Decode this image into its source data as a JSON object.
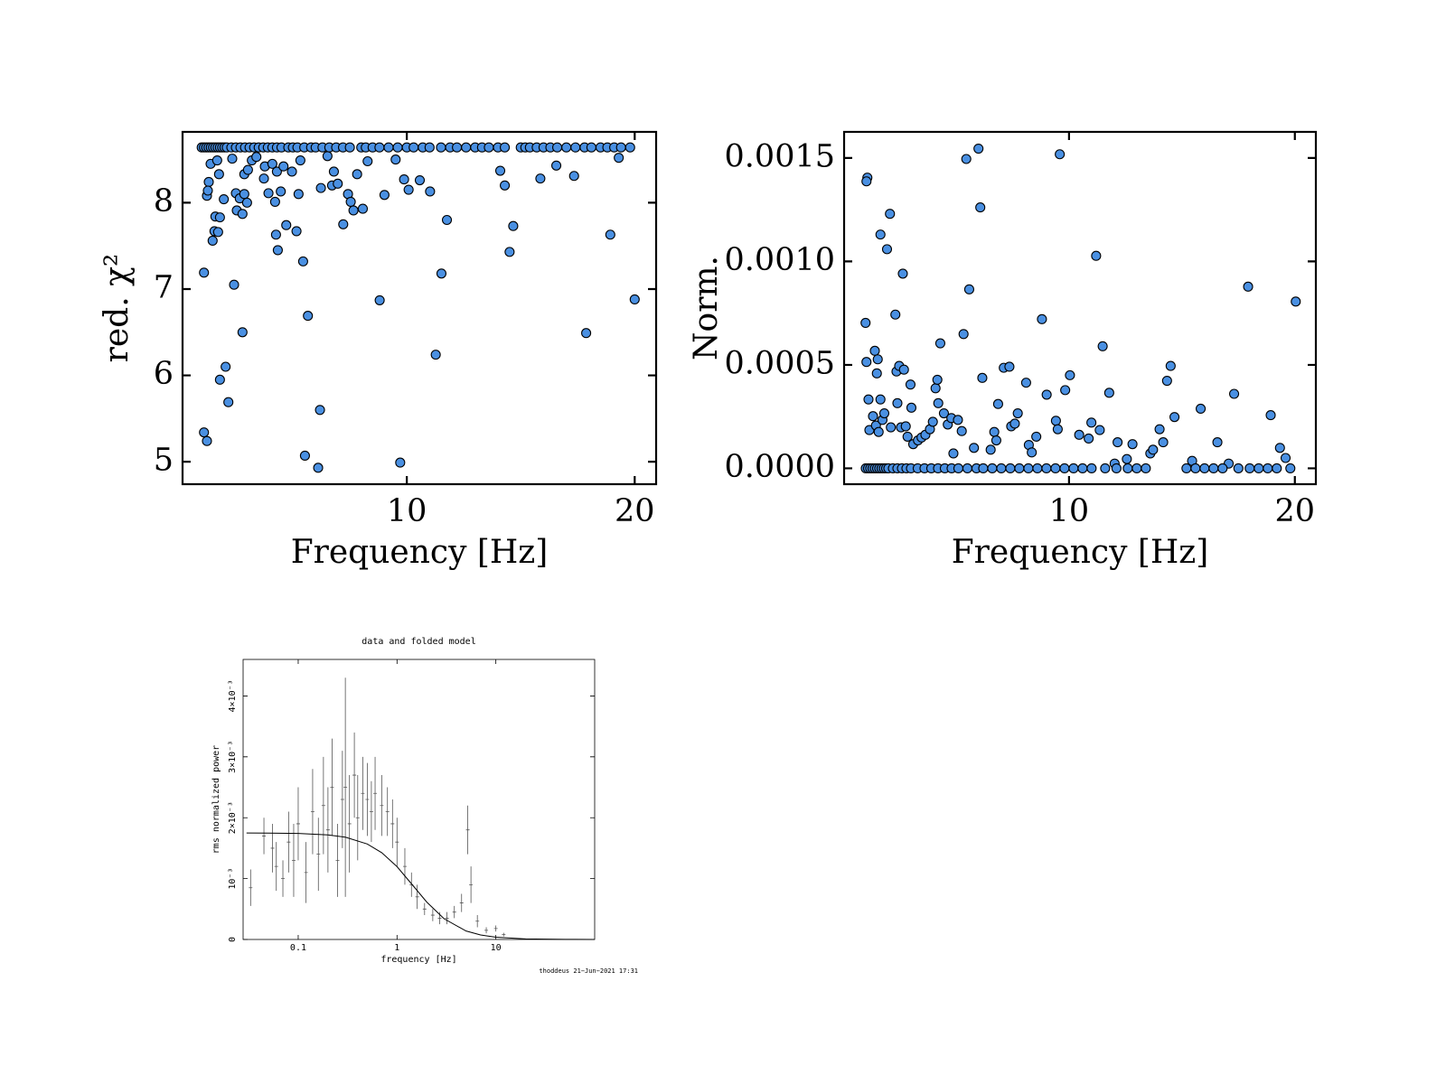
{
  "chart_data": [
    {
      "type": "scatter",
      "xlabel": "Frequency [Hz]",
      "ylabel": "red. χ²",
      "x": [
        1.1,
        1.23,
        1.1,
        2.17,
        2.05,
        1.8,
        2.79,
        2.42,
        1.48,
        1.56,
        1.72,
        1.6,
        1.8,
        1.23,
        1.31,
        1.27,
        1.39,
        1.68,
        1.76,
        1.97,
        2.34,
        2.5,
        2.54,
        2.67,
        2.79,
        2.87,
        2.99,
        2.87,
        3.03,
        3.2,
        3.4,
        3.73,
        3.77,
        3.93,
        4.1,
        4.22,
        4.3,
        4.26,
        4.34,
        4.47,
        4.59,
        4.71,
        4.96,
        5.16,
        5.25,
        5.33,
        5.45,
        5.53,
        5.66,
        6.19,
        6.11,
        6.23,
        6.52,
        6.72,
        6.8,
        6.97,
        7.21,
        7.42,
        7.54,
        7.66,
        7.82,
        8.07,
        8.28,
        8.81,
        9.02,
        9.51,
        9.71,
        9.88,
        10.08,
        10.57,
        11.02,
        11.27,
        11.52,
        11.76,
        14.1,
        14.3,
        14.51,
        14.67,
        15.86,
        16.56,
        17.34,
        17.87,
        18.93,
        19.3,
        20.0,
        1.0,
        1.1,
        1.2,
        1.3,
        1.4,
        1.5,
        1.6,
        1.7,
        1.8,
        1.9,
        2.0,
        2.1,
        2.3,
        2.5,
        2.7,
        2.9,
        3.1,
        3.3,
        3.5,
        3.7,
        3.9,
        4.1,
        4.3,
        4.5,
        4.8,
        5.0,
        5.2,
        5.5,
        5.8,
        6.0,
        6.3,
        6.6,
        6.9,
        7.2,
        7.5,
        8.0,
        8.2,
        8.5,
        8.8,
        9.2,
        9.6,
        10.0,
        10.3,
        10.7,
        11.0,
        11.5,
        11.9,
        12.2,
        12.6,
        13.0,
        13.3,
        13.6,
        14.0,
        14.3,
        15.0,
        15.2,
        15.4,
        15.7,
        16.0,
        16.3,
        16.6,
        17.0,
        17.4,
        17.8,
        18.1,
        18.5,
        18.8,
        19.1,
        19.4,
        19.8
      ],
      "values": [
        5.34,
        5.24,
        7.19,
        5.69,
        6.1,
        5.95,
        6.5,
        7.05,
        7.56,
        7.67,
        7.66,
        7.84,
        7.83,
        8.08,
        8.24,
        8.14,
        8.45,
        8.49,
        8.33,
        8.04,
        8.51,
        8.11,
        7.91,
        8.05,
        7.87,
        8.1,
        8.0,
        8.33,
        8.38,
        8.49,
        8.53,
        8.28,
        8.42,
        8.11,
        8.45,
        8.01,
        8.36,
        7.63,
        7.45,
        8.13,
        8.42,
        7.74,
        8.36,
        7.67,
        8.1,
        8.49,
        7.32,
        5.07,
        6.69,
        5.6,
        4.93,
        8.17,
        8.54,
        8.2,
        8.36,
        8.22,
        7.75,
        8.1,
        8.01,
        7.91,
        8.33,
        7.93,
        8.48,
        6.87,
        8.09,
        8.5,
        4.99,
        8.27,
        8.15,
        8.26,
        8.13,
        6.24,
        7.18,
        7.8,
        8.37,
        8.2,
        7.43,
        7.73,
        8.28,
        8.43,
        8.31,
        6.49,
        7.63,
        8.52,
        6.88,
        8.64,
        8.64,
        8.64,
        8.64,
        8.64,
        8.64,
        8.64,
        8.64,
        8.64,
        8.64,
        8.64,
        8.64,
        8.64,
        8.64,
        8.64,
        8.64,
        8.64,
        8.64,
        8.64,
        8.64,
        8.64,
        8.64,
        8.64,
        8.64,
        8.64,
        8.64,
        8.64,
        8.64,
        8.64,
        8.64,
        8.64,
        8.64,
        8.64,
        8.64,
        8.64,
        8.64,
        8.64,
        8.64,
        8.64,
        8.64,
        8.64,
        8.64,
        8.64,
        8.64,
        8.64,
        8.64,
        8.64,
        8.64,
        8.64,
        8.64,
        8.64,
        8.64,
        8.64,
        8.64,
        8.64,
        8.64,
        8.64,
        8.64,
        8.64,
        8.64,
        8.64,
        8.64,
        8.64,
        8.64,
        8.64,
        8.64,
        8.64,
        8.64,
        8.64,
        8.64
      ],
      "color": "#4a90e2",
      "edgecolor": "#000000",
      "xlim": [
        0.16,
        20.94
      ],
      "xticks": [
        10,
        20
      ],
      "ylim": [
        4.74,
        8.82
      ],
      "yticks": [
        5,
        6,
        7,
        8
      ]
    },
    {
      "type": "scatter",
      "xlabel": "Frequency [Hz]",
      "ylabel": "Norm.",
      "x": [
        1.07,
        1.03,
        0.99,
        1.03,
        1.12,
        1.16,
        1.32,
        1.4,
        1.49,
        1.53,
        1.45,
        1.57,
        1.65,
        1.65,
        1.74,
        1.82,
        1.94,
        2.07,
        2.11,
        2.31,
        2.36,
        2.4,
        2.48,
        2.56,
        2.64,
        2.69,
        2.77,
        2.85,
        2.98,
        3.02,
        3.1,
        3.31,
        3.47,
        3.64,
        3.84,
        3.97,
        4.09,
        4.17,
        4.3,
        4.21,
        4.46,
        4.63,
        4.79,
        4.88,
        5.08,
        5.25,
        5.33,
        5.45,
        5.58,
        5.79,
        5.99,
        6.07,
        6.16,
        6.53,
        6.69,
        6.78,
        6.86,
        7.11,
        7.36,
        7.44,
        7.6,
        7.73,
        8.1,
        8.22,
        8.35,
        8.55,
        8.8,
        9.01,
        9.42,
        9.5,
        9.59,
        9.83,
        10.04,
        10.45,
        10.87,
        10.99,
        11.2,
        11.36,
        11.49,
        11.78,
        12.02,
        12.15,
        12.56,
        12.81,
        13.6,
        13.72,
        14.01,
        14.17,
        14.34,
        14.5,
        14.67,
        15.45,
        15.83,
        16.57,
        17.07,
        17.31,
        17.93,
        18.93,
        19.34,
        19.59,
        20.04,
        1.0,
        1.1,
        1.2,
        1.3,
        1.4,
        1.5,
        1.6,
        1.7,
        1.8,
        1.9,
        2.0,
        2.2,
        2.4,
        2.6,
        2.8,
        3.0,
        3.3,
        3.6,
        3.9,
        4.2,
        4.5,
        4.8,
        5.1,
        5.5,
        5.9,
        6.2,
        6.6,
        7.0,
        7.4,
        7.8,
        8.2,
        8.6,
        9.0,
        9.4,
        9.8,
        10.2,
        10.6,
        11.0,
        11.6,
        12.1,
        12.6,
        13.0,
        13.4,
        15.2,
        15.6,
        16.0,
        16.4,
        16.8,
        17.5,
        18.0,
        18.4,
        18.8,
        19.2,
        19.8
      ],
      "values": [
        0.001405,
        0.001387,
        0.000703,
        0.000514,
        0.000333,
        0.000185,
        0.000252,
        0.000568,
        0.000459,
        0.000527,
        0.000207,
        0.000176,
        0.000333,
        0.00113,
        0.000234,
        0.000266,
        0.001059,
        0.00123,
        0.000198,
        0.000743,
        0.000468,
        0.000315,
        0.000495,
        0.000198,
        0.000941,
        0.000477,
        0.000203,
        0.000153,
        0.000405,
        0.000293,
        0.000117,
        0.000135,
        0.000149,
        0.000162,
        0.000189,
        0.000225,
        0.000387,
        0.000428,
        0.000604,
        0.000315,
        0.000266,
        0.000212,
        0.000243,
        7.2e-05,
        0.000234,
        0.00018,
        0.000649,
        0.001495,
        0.000865,
        9.9e-05,
        0.001545,
        0.001261,
        0.000437,
        9e-05,
        0.000176,
        0.000135,
        0.000311,
        0.000486,
        0.000491,
        0.000203,
        0.000216,
        0.000266,
        0.000414,
        0.000113,
        7.7e-05,
        0.000153,
        0.000721,
        0.000356,
        0.00023,
        0.000189,
        0.001518,
        0.000378,
        0.00045,
        0.000162,
        0.000144,
        0.000221,
        0.001027,
        0.000185,
        0.00059,
        0.000365,
        2.3e-05,
        0.000126,
        4.5e-05,
        0.000117,
        7.2e-05,
        9e-05,
        0.000189,
        0.000126,
        0.000423,
        0.000495,
        0.000248,
        3.6e-05,
        0.000288,
        0.000126,
        2.3e-05,
        0.00036,
        0.000878,
        0.000257,
        9.9e-05,
        5e-05,
        0.000806,
        0,
        0,
        0,
        0,
        0,
        0,
        0,
        0,
        0,
        0,
        0,
        0,
        0,
        0,
        0,
        0,
        0,
        0,
        0,
        0,
        0,
        0,
        0,
        0,
        0,
        0,
        0,
        0,
        0,
        0,
        0,
        0,
        0,
        0,
        0,
        0,
        0,
        0,
        0,
        0,
        0,
        0,
        0,
        0,
        0,
        0,
        0,
        0,
        0,
        0,
        0,
        0,
        0,
        0
      ],
      "color": "#4a90e2",
      "edgecolor": "#000000",
      "xlim": [
        0.04,
        20.93
      ],
      "xticks": [
        10,
        20
      ],
      "ylim": [
        -7.66e-05,
        0.001626
      ],
      "yticks": [
        {
          "value": 0,
          "label": "0.0000"
        },
        {
          "value": 0.0005,
          "label": "0.0005"
        },
        {
          "value": 0.001,
          "label": "0.0010"
        },
        {
          "value": 0.0015,
          "label": "0.0015"
        }
      ]
    },
    {
      "type": "errorbar",
      "title": "data and folded model",
      "xlabel": "frequency [Hz]",
      "ylabel": "rms normalized power",
      "footer": "thoddeus 21−Jun−2021 17:31",
      "xscale": "log",
      "x": [
        0.033,
        0.045,
        0.055,
        0.06,
        0.07,
        0.08,
        0.09,
        0.1,
        0.12,
        0.14,
        0.16,
        0.18,
        0.2,
        0.22,
        0.25,
        0.28,
        0.3,
        0.33,
        0.37,
        0.4,
        0.45,
        0.5,
        0.55,
        0.6,
        0.7,
        0.8,
        0.9,
        1.0,
        1.2,
        1.4,
        1.6,
        1.9,
        2.3,
        2.7,
        3.2,
        3.8,
        4.5,
        5.2,
        5.6,
        6.5,
        8,
        10,
        12
      ],
      "values": [
        0.00085,
        0.0017,
        0.0015,
        0.0012,
        0.001,
        0.0016,
        0.0013,
        0.0019,
        0.0011,
        0.0021,
        0.0014,
        0.0022,
        0.0018,
        0.0025,
        0.0013,
        0.0023,
        0.0025,
        0.0019,
        0.0027,
        0.002,
        0.0024,
        0.0023,
        0.0021,
        0.0024,
        0.0022,
        0.0021,
        0.0019,
        0.0016,
        0.0012,
        0.0009,
        0.0007,
        0.0005,
        0.0004,
        0.00035,
        0.00035,
        0.00045,
        0.0006,
        0.0018,
        0.0009,
        0.0003,
        0.00015,
        0.00018,
        8e-05
      ],
      "errors": [
        0.0003,
        0.0003,
        0.0004,
        0.0004,
        0.0003,
        0.0005,
        0.0006,
        0.0006,
        0.0005,
        0.0007,
        0.0006,
        0.0008,
        0.0007,
        0.0008,
        0.0006,
        0.0008,
        0.0018,
        0.0008,
        0.0007,
        0.0007,
        0.0006,
        0.0006,
        0.0005,
        0.0006,
        0.0005,
        0.0004,
        0.0004,
        0.0004,
        0.0003,
        0.0002,
        0.0002,
        0.0001,
        0.0001,
        0.0001,
        0.0001,
        0.0001,
        0.00015,
        0.0004,
        0.0003,
        0.0001,
        5e-05,
        5e-05,
        3e-05
      ],
      "model": {
        "x": [
          0.03,
          0.05,
          0.1,
          0.2,
          0.3,
          0.5,
          0.7,
          1,
          1.5,
          2,
          3,
          5,
          7,
          10,
          20,
          50,
          100
        ],
        "values": [
          0.001749,
          0.001748,
          0.001742,
          0.001718,
          0.00168,
          0.001568,
          0.001426,
          0.001196,
          0.000857,
          0.000614,
          0.000339,
          0.000139,
          7.38e-05,
          3.7e-05,
          9.4e-06,
          1.3e-06,
          3e-07
        ]
      },
      "color": "#555555",
      "model_color": "#000000",
      "xlim": [
        0.0277,
        100
      ],
      "xticks": [
        0.1,
        1,
        10
      ],
      "ylim": [
        0,
        0.0046
      ],
      "yticks": [
        0,
        {
          "value": 0.001,
          "label": "10⁻³"
        },
        {
          "value": 0.002,
          "label": "2×10⁻³"
        },
        {
          "value": 0.003,
          "label": "3×10⁻³"
        },
        {
          "value": 0.004,
          "label": "4×10⁻³"
        }
      ]
    }
  ]
}
